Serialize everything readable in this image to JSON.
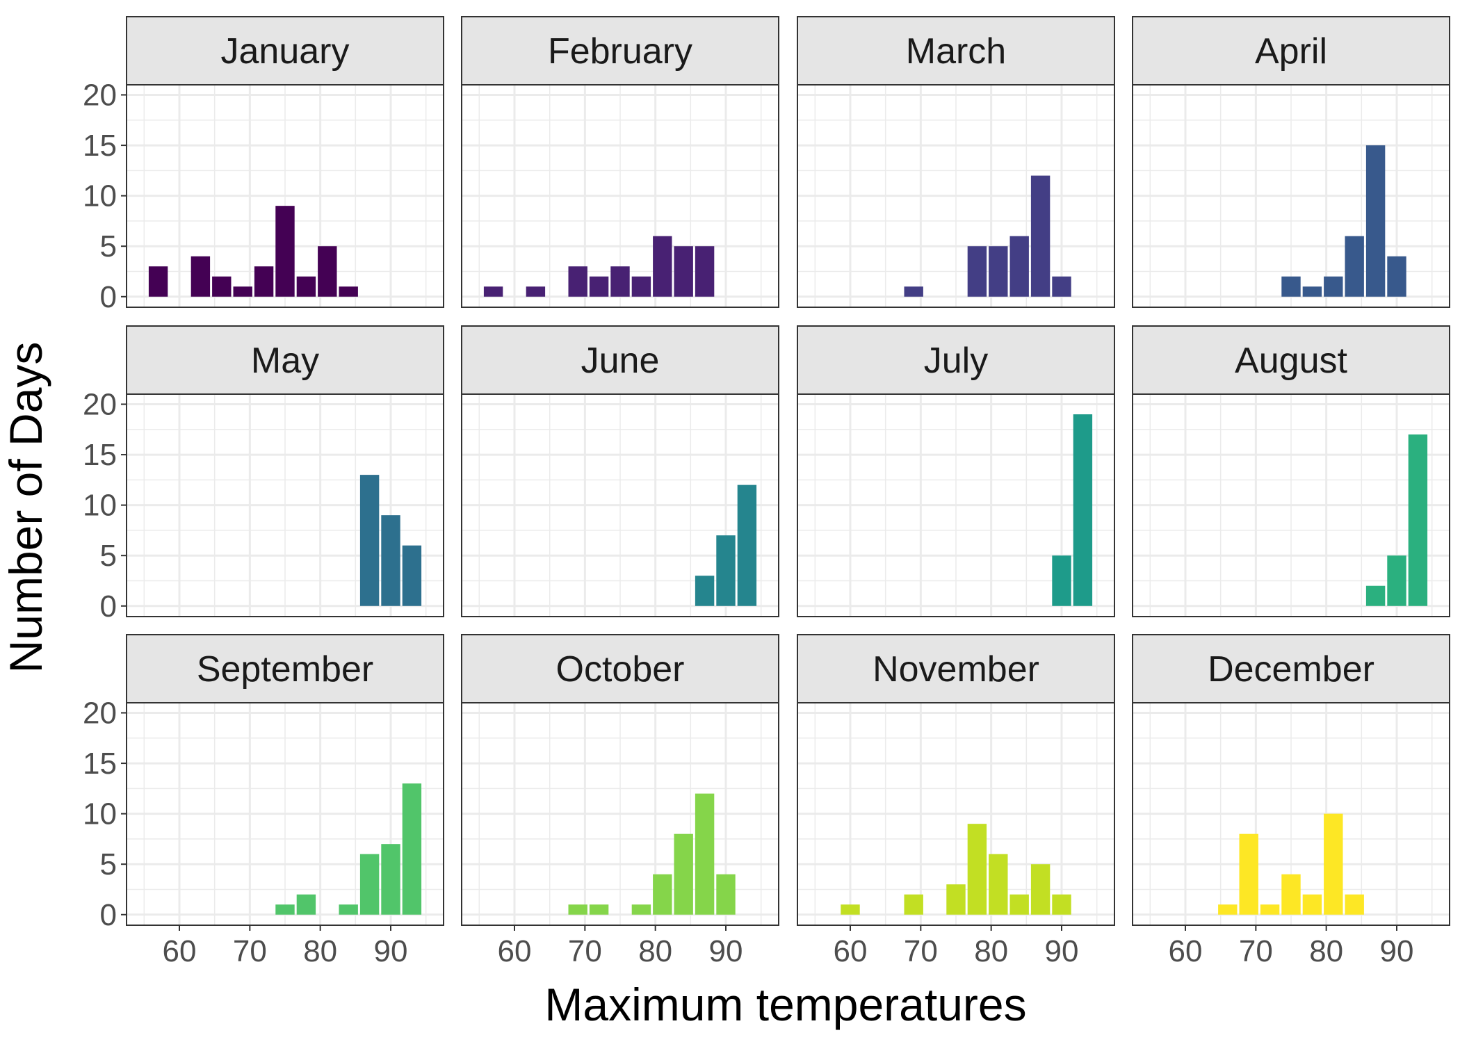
{
  "chart_data": {
    "type": "bar",
    "facet_layout": "3x4 small multiples",
    "xlabel": "Maximum temperatures",
    "ylabel": "Number of Days",
    "xlim": [
      52.5,
      97.5
    ],
    "ylim": [
      0,
      20
    ],
    "xticks": [
      60,
      70,
      80,
      90
    ],
    "yticks": [
      0,
      5,
      10,
      15,
      20
    ],
    "bin_width": 3,
    "grid": true,
    "panels": [
      {
        "label": "January",
        "color": "#440154",
        "bars": [
          {
            "x": 57,
            "y": 3
          },
          {
            "x": 63,
            "y": 4
          },
          {
            "x": 66,
            "y": 2
          },
          {
            "x": 69,
            "y": 1
          },
          {
            "x": 72,
            "y": 3
          },
          {
            "x": 75,
            "y": 9
          },
          {
            "x": 78,
            "y": 2
          },
          {
            "x": 81,
            "y": 5
          },
          {
            "x": 84,
            "y": 1
          }
        ]
      },
      {
        "label": "February",
        "color": "#482173",
        "bars": [
          {
            "x": 57,
            "y": 1
          },
          {
            "x": 63,
            "y": 1
          },
          {
            "x": 69,
            "y": 3
          },
          {
            "x": 72,
            "y": 2
          },
          {
            "x": 75,
            "y": 3
          },
          {
            "x": 78,
            "y": 2
          },
          {
            "x": 81,
            "y": 6
          },
          {
            "x": 84,
            "y": 5
          },
          {
            "x": 87,
            "y": 5
          }
        ]
      },
      {
        "label": "March",
        "color": "#433E85",
        "bars": [
          {
            "x": 69,
            "y": 1
          },
          {
            "x": 78,
            "y": 5
          },
          {
            "x": 81,
            "y": 5
          },
          {
            "x": 84,
            "y": 6
          },
          {
            "x": 87,
            "y": 12
          },
          {
            "x": 90,
            "y": 2
          }
        ]
      },
      {
        "label": "April",
        "color": "#38598C",
        "bars": [
          {
            "x": 75,
            "y": 2
          },
          {
            "x": 78,
            "y": 1
          },
          {
            "x": 81,
            "y": 2
          },
          {
            "x": 84,
            "y": 6
          },
          {
            "x": 87,
            "y": 15
          },
          {
            "x": 90,
            "y": 4
          }
        ]
      },
      {
        "label": "May",
        "color": "#2D708E",
        "bars": [
          {
            "x": 87,
            "y": 13
          },
          {
            "x": 90,
            "y": 9
          },
          {
            "x": 93,
            "y": 6
          }
        ]
      },
      {
        "label": "June",
        "color": "#25858E",
        "bars": [
          {
            "x": 87,
            "y": 3
          },
          {
            "x": 90,
            "y": 7
          },
          {
            "x": 93,
            "y": 12
          }
        ]
      },
      {
        "label": "July",
        "color": "#1E9B8A",
        "bars": [
          {
            "x": 90,
            "y": 5
          },
          {
            "x": 93,
            "y": 19
          }
        ]
      },
      {
        "label": "August",
        "color": "#2BB07F",
        "bars": [
          {
            "x": 87,
            "y": 2
          },
          {
            "x": 90,
            "y": 5
          },
          {
            "x": 93,
            "y": 17
          }
        ]
      },
      {
        "label": "September",
        "color": "#51C56A",
        "bars": [
          {
            "x": 75,
            "y": 1
          },
          {
            "x": 78,
            "y": 2
          },
          {
            "x": 84,
            "y": 1
          },
          {
            "x": 87,
            "y": 6
          },
          {
            "x": 90,
            "y": 7
          },
          {
            "x": 93,
            "y": 13
          }
        ]
      },
      {
        "label": "October",
        "color": "#85D54A",
        "bars": [
          {
            "x": 69,
            "y": 1
          },
          {
            "x": 72,
            "y": 1
          },
          {
            "x": 78,
            "y": 1
          },
          {
            "x": 81,
            "y": 4
          },
          {
            "x": 84,
            "y": 8
          },
          {
            "x": 87,
            "y": 12
          },
          {
            "x": 90,
            "y": 4
          }
        ]
      },
      {
        "label": "November",
        "color": "#C2DF23",
        "bars": [
          {
            "x": 60,
            "y": 1
          },
          {
            "x": 69,
            "y": 2
          },
          {
            "x": 75,
            "y": 3
          },
          {
            "x": 78,
            "y": 9
          },
          {
            "x": 81,
            "y": 6
          },
          {
            "x": 84,
            "y": 2
          },
          {
            "x": 87,
            "y": 5
          },
          {
            "x": 90,
            "y": 2
          }
        ]
      },
      {
        "label": "December",
        "color": "#FDE725",
        "bars": [
          {
            "x": 66,
            "y": 1
          },
          {
            "x": 69,
            "y": 8
          },
          {
            "x": 72,
            "y": 1
          },
          {
            "x": 75,
            "y": 4
          },
          {
            "x": 78,
            "y": 2
          },
          {
            "x": 81,
            "y": 10
          },
          {
            "x": 84,
            "y": 2
          }
        ]
      }
    ]
  }
}
